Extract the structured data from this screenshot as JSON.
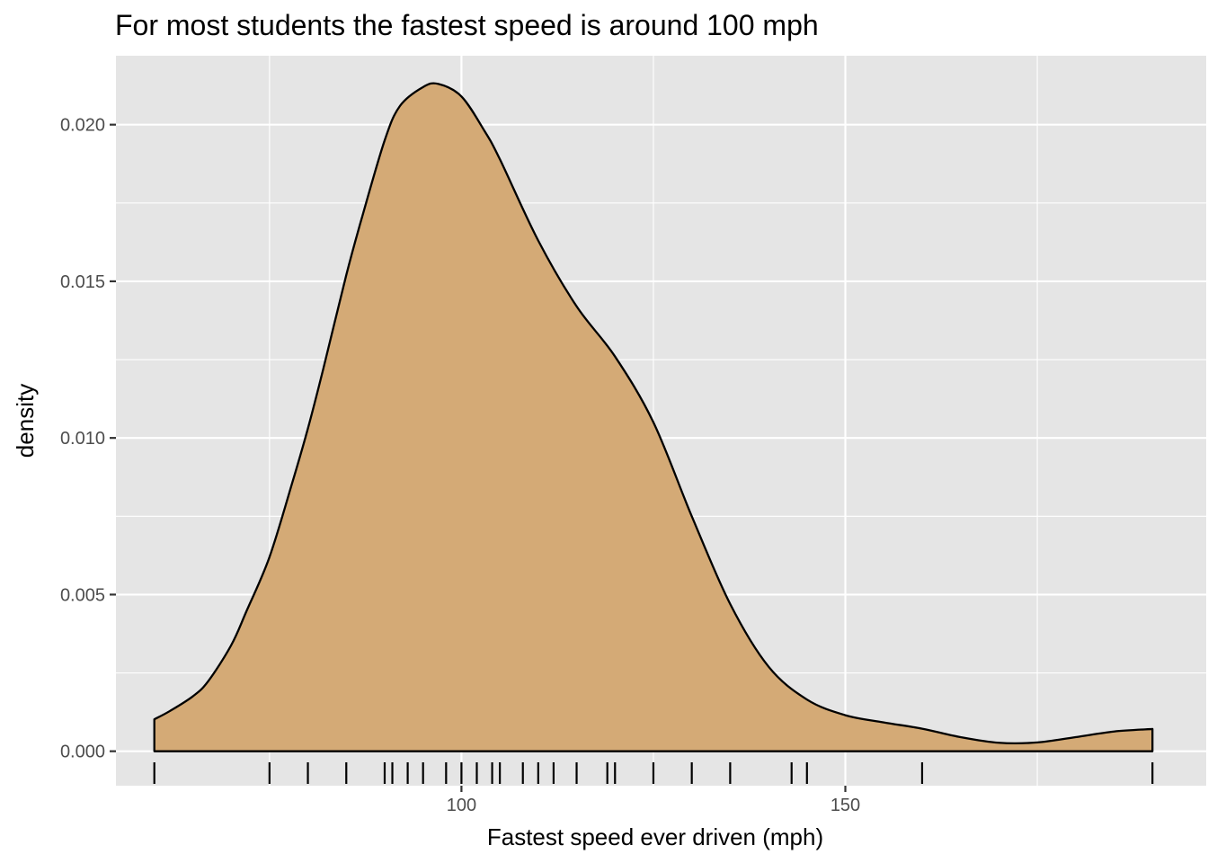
{
  "chart_data": {
    "type": "area",
    "title": "For most students the fastest speed is around 100 mph",
    "xlabel": "Fastest speed ever driven (mph)",
    "ylabel": "density",
    "xlim": [
      55,
      197
    ],
    "ylim": [
      -0.0011,
      0.0222
    ],
    "x_ticks": [
      100,
      150
    ],
    "x_tick_labels": [
      "100",
      "150"
    ],
    "y_ticks": [
      0,
      0.005,
      0.01,
      0.015,
      0.02
    ],
    "y_tick_labels": [
      "0.000",
      "0.005",
      "0.010",
      "0.015",
      "0.020"
    ],
    "grid": true,
    "density_curve": {
      "x": [
        60,
        62,
        65,
        67,
        70,
        72,
        75,
        78,
        80,
        82,
        85,
        87,
        90,
        92,
        95,
        97,
        100,
        103,
        105,
        110,
        115,
        120,
        125,
        130,
        135,
        140,
        145,
        150,
        155,
        160,
        165,
        170,
        175,
        180,
        185,
        190
      ],
      "y": [
        0.00102,
        0.00128,
        0.00175,
        0.00223,
        0.00338,
        0.00447,
        0.0062,
        0.0086,
        0.0103,
        0.0122,
        0.0152,
        0.017,
        0.0195,
        0.0206,
        0.0212,
        0.0213,
        0.0209,
        0.0198,
        0.0189,
        0.0163,
        0.0142,
        0.0126,
        0.0105,
        0.0075,
        0.0047,
        0.0027,
        0.00165,
        0.00115,
        0.00092,
        0.00072,
        0.00045,
        0.00027,
        0.00028,
        0.00045,
        0.00063,
        0.00071
      ]
    },
    "rug": [
      60,
      75,
      80,
      85,
      90,
      91,
      93,
      95,
      98,
      100,
      102,
      104,
      105,
      108,
      110,
      112,
      115,
      119,
      120,
      125,
      130,
      135,
      143,
      145,
      160,
      190
    ],
    "colors": {
      "fill": "#d4aa76",
      "line": "#000000",
      "panel": "#e5e5e5",
      "grid": "#ffffff"
    }
  }
}
